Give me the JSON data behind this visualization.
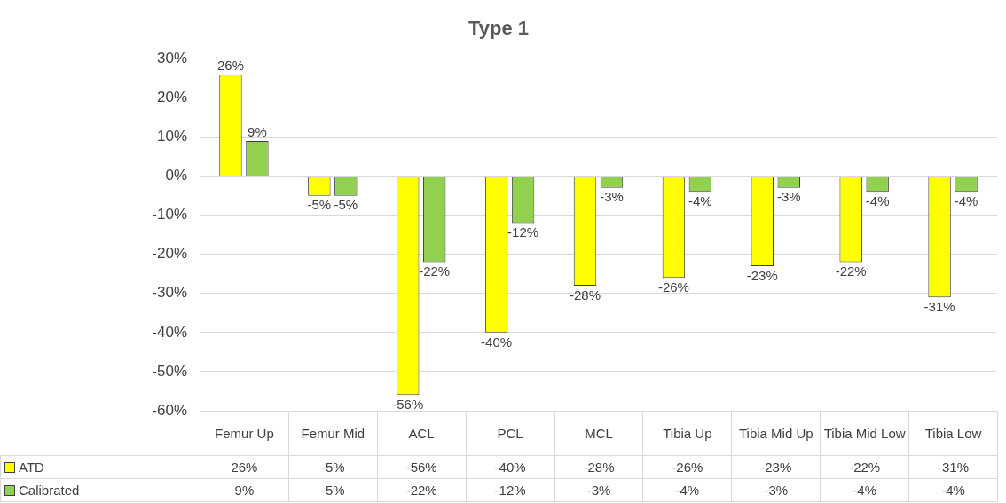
{
  "chart_data": {
    "type": "bar",
    "title": "Type 1",
    "categories": [
      "Femur Up",
      "Femur Mid",
      "ACL",
      "PCL",
      "MCL",
      "Tibia Up",
      "Tibia Mid Up",
      "Tibia Mid Low",
      "Tibia Low"
    ],
    "series": [
      {
        "name": "ATD",
        "color": "#ffff00",
        "values": [
          26,
          -5,
          -56,
          -40,
          -28,
          -26,
          -23,
          -22,
          -31
        ],
        "value_labels": [
          "26%",
          "-5%",
          "-56%",
          "-40%",
          "-28%",
          "-26%",
          "-23%",
          "-22%",
          "-31%"
        ]
      },
      {
        "name": "Calibrated",
        "color": "#92d050",
        "values": [
          9,
          -5,
          -22,
          -12,
          -3,
          -4,
          -3,
          -4,
          -4
        ],
        "value_labels": [
          "9%",
          "-5%",
          "-22%",
          "-12%",
          "-3%",
          "-4%",
          "-3%",
          "-4%",
          "-4%"
        ]
      }
    ],
    "ylim": [
      -60,
      30
    ],
    "yticks": [
      {
        "value": -60,
        "label": "-60%"
      },
      {
        "value": -50,
        "label": "-50%"
      },
      {
        "value": -40,
        "label": "-40%"
      },
      {
        "value": -30,
        "label": "-30%"
      },
      {
        "value": -20,
        "label": "-20%"
      },
      {
        "value": -10,
        "label": "-10%"
      },
      {
        "value": 0,
        "label": "0%"
      },
      {
        "value": 10,
        "label": "10%"
      },
      {
        "value": 20,
        "label": "20%"
      },
      {
        "value": 30,
        "label": "30%"
      }
    ],
    "grid": "y",
    "legend": "bottom"
  }
}
